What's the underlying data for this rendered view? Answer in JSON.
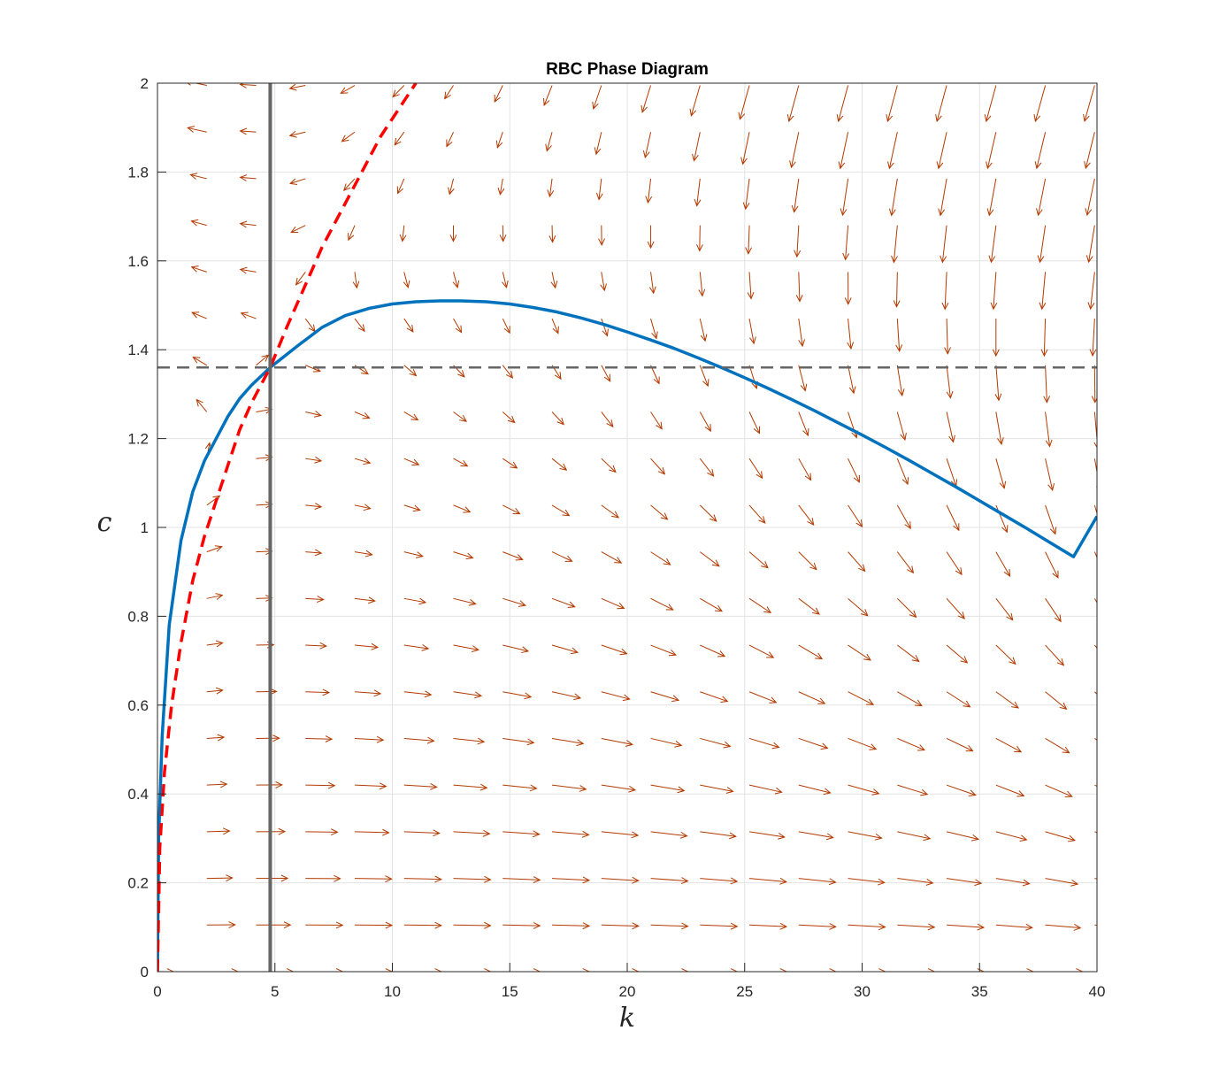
{
  "chart_data": {
    "type": "line",
    "title": "RBC Phase Diagram",
    "xlabel": "k",
    "ylabel": "c",
    "xlim": [
      0,
      40
    ],
    "ylim": [
      0,
      2
    ],
    "x_ticks": [
      0,
      5,
      10,
      15,
      20,
      25,
      30,
      35,
      40
    ],
    "y_ticks": [
      0,
      0.2,
      0.4,
      0.6,
      0.8,
      1,
      1.2,
      1.4,
      1.6,
      1.8,
      2
    ],
    "x_tick_labels": [
      "0",
      "5",
      "10",
      "15",
      "20",
      "25",
      "30",
      "35",
      "40"
    ],
    "y_tick_labels": [
      "0",
      "0.2",
      "0.4",
      "0.6",
      "0.8",
      "1",
      "1.2",
      "1.4",
      "1.6",
      "1.8",
      "2"
    ],
    "grid": true,
    "colors": {
      "k_nullcline": "#0072BD",
      "saddle_path": "#FF0000",
      "steady_state_lines": "#666666",
      "quiver": "#B33A00"
    },
    "series": [
      {
        "style": "solid",
        "color": "#0072BD",
        "x": [
          0,
          0.05,
          0.2,
          0.5,
          1,
          1.5,
          2,
          2.5,
          3,
          3.5,
          4,
          4.8,
          6,
          7,
          8,
          9,
          10,
          11,
          12,
          12.9,
          14,
          15,
          16,
          17,
          18,
          19,
          20,
          21,
          22,
          23,
          24,
          25,
          26,
          27,
          28,
          29,
          30,
          31,
          32,
          33,
          34,
          35,
          36,
          37,
          38,
          39,
          40
        ],
        "y": [
          0,
          0.3,
          0.53,
          0.78,
          0.97,
          1.08,
          1.15,
          1.2,
          1.25,
          1.29,
          1.32,
          1.36,
          1.41,
          1.45,
          1.477,
          1.493,
          1.503,
          1.508,
          1.51,
          1.51,
          1.508,
          1.503,
          1.495,
          1.485,
          1.472,
          1.457,
          1.44,
          1.422,
          1.403,
          1.382,
          1.36,
          1.337,
          1.313,
          1.288,
          1.262,
          1.235,
          1.208,
          1.18,
          1.151,
          1.121,
          1.091,
          1.06,
          1.029,
          0.998,
          0.966,
          0.934,
          1.025
        ]
      },
      {
        "style": "dashed",
        "color": "#FF0000",
        "x": [
          0,
          0.1,
          0.3,
          0.6,
          1,
          1.5,
          2,
          2.5,
          3,
          3.5,
          4,
          4.8,
          5.5,
          6,
          6.5,
          7,
          7.5,
          8,
          8.5,
          9,
          9.5,
          10,
          10.5,
          11
        ],
        "y": [
          0,
          0.28,
          0.45,
          0.6,
          0.74,
          0.88,
          0.98,
          1.06,
          1.14,
          1.22,
          1.28,
          1.36,
          1.45,
          1.51,
          1.57,
          1.63,
          1.68,
          1.73,
          1.78,
          1.83,
          1.88,
          1.92,
          1.96,
          2.0
        ]
      },
      {
        "style": "solid",
        "color": "#666666",
        "x": [
          4.8,
          4.8
        ],
        "y": [
          0,
          2
        ]
      },
      {
        "style": "dashed",
        "color": "#666666",
        "x": [
          0,
          40
        ],
        "y": [
          1.36,
          1.36
        ]
      }
    ],
    "quiver": {
      "color": "#B33A00",
      "k_grid_start": 0,
      "k_grid_step": 2.1,
      "k_grid_count": 20,
      "c_grid_start": 0,
      "c_grid_step": 0.105,
      "c_grid_count": 20,
      "steady_state": [
        4.8,
        1.36
      ]
    }
  }
}
